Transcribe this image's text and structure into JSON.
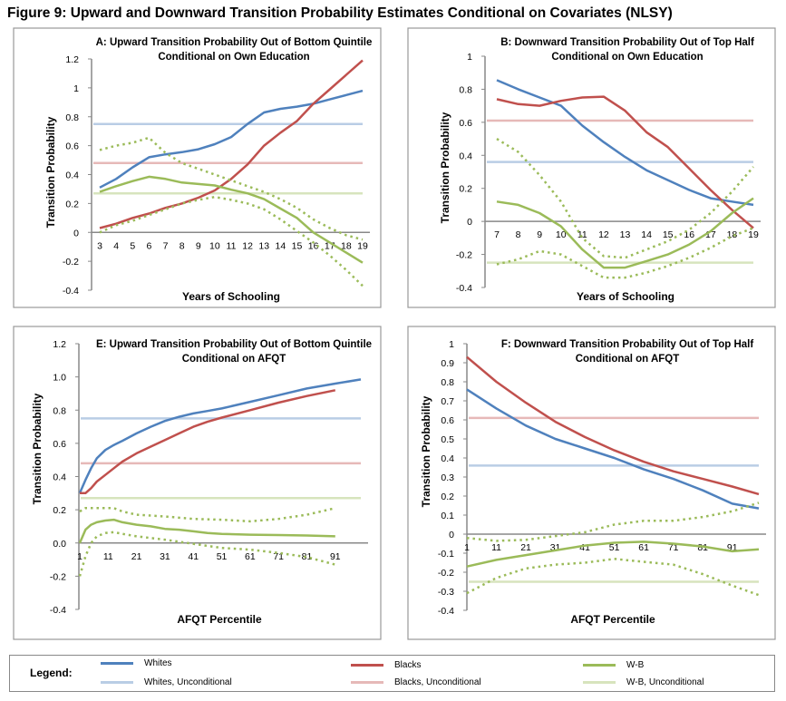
{
  "figure_title": "Figure 9: Upward and Downward Transition Probability Estimates Conditional on Covariates (NLSY)",
  "colors": {
    "whites": "#4F81BD",
    "blacks": "#C0504D",
    "wb": "#9BBB59",
    "whites_unc": "#B9CDE5",
    "blacks_unc": "#E6B9B8",
    "wb_unc": "#D7E4BD"
  },
  "legend": {
    "title": "Legend:",
    "items": [
      {
        "label": "Whites",
        "color": "#4F81BD"
      },
      {
        "label": "Blacks",
        "color": "#C0504D"
      },
      {
        "label": "W-B",
        "color": "#9BBB59"
      },
      {
        "label": "Whites, Unconditional",
        "color": "#B9CDE5"
      },
      {
        "label": "Blacks, Unconditional",
        "color": "#E6B9B8"
      },
      {
        "label": "W-B, Unconditional",
        "color": "#D7E4BD"
      }
    ]
  },
  "chart_data": [
    {
      "type": "line",
      "id": "A",
      "title": [
        "A: Upward Transition Probability Out of Bottom Quintile",
        "Conditional on Own Education"
      ],
      "xlabel": "Years of Schooling",
      "ylabel": "Transition Probability",
      "xlim": [
        3,
        19
      ],
      "ylim": [
        -0.4,
        1.2
      ],
      "yticks": [
        1.2,
        1,
        0.8,
        0.6,
        0.4,
        0.2,
        0,
        -0.2,
        -0.4
      ],
      "ytick_labels": [
        "1.2",
        "1",
        "0.8",
        "0.6",
        "0.4",
        "0.2",
        "0",
        "-0.2",
        "-0.4"
      ],
      "xticks": [
        3,
        4,
        5,
        6,
        7,
        8,
        9,
        10,
        11,
        12,
        13,
        14,
        15,
        16,
        17,
        18,
        19
      ],
      "xtick_labels": [
        "3",
        "4",
        "5",
        "6",
        "7",
        "8",
        "9",
        "10",
        "11",
        "12",
        "13",
        "14",
        "15",
        "16",
        "17",
        "18",
        "19"
      ],
      "x": [
        3,
        4,
        5,
        6,
        7,
        8,
        9,
        10,
        11,
        12,
        13,
        14,
        15,
        16,
        17,
        18,
        19
      ],
      "series": [
        {
          "name": "Whites",
          "values": [
            0.31,
            0.37,
            0.45,
            0.52,
            0.54,
            0.555,
            0.575,
            0.61,
            0.66,
            0.75,
            0.83,
            0.855,
            0.87,
            0.89,
            0.92,
            0.95,
            0.98
          ]
        },
        {
          "name": "Blacks",
          "values": [
            0.03,
            0.06,
            0.1,
            0.13,
            0.17,
            0.2,
            0.24,
            0.29,
            0.37,
            0.47,
            0.6,
            0.69,
            0.77,
            0.89,
            0.99,
            1.09,
            1.19
          ]
        },
        {
          "name": "W-B",
          "values": [
            0.28,
            0.32,
            0.355,
            0.385,
            0.37,
            0.345,
            0.335,
            0.325,
            0.295,
            0.27,
            0.23,
            0.165,
            0.1,
            0.0,
            -0.07,
            -0.14,
            -0.21
          ]
        },
        {
          "name": "W-B upper CI",
          "values": [
            0.57,
            0.6,
            0.62,
            0.655,
            0.55,
            0.48,
            0.44,
            0.4,
            0.36,
            0.32,
            0.28,
            0.23,
            0.17,
            0.09,
            0.03,
            -0.02,
            -0.05
          ]
        },
        {
          "name": "W-B lower CI",
          "values": [
            0.0,
            0.05,
            0.08,
            0.12,
            0.16,
            0.2,
            0.225,
            0.245,
            0.225,
            0.2,
            0.16,
            0.09,
            0.01,
            -0.07,
            -0.16,
            -0.26,
            -0.37
          ]
        }
      ],
      "unconditional": {
        "Whites": 0.75,
        "Blacks": 0.48,
        "W-B": 0.27
      }
    },
    {
      "type": "line",
      "id": "B",
      "title": [
        "B: Downward Transition Probability Out of Top Half",
        "Conditional on Own Education"
      ],
      "xlabel": "Years of Schooling",
      "ylabel": "Transition Probability",
      "xlim": [
        7,
        19
      ],
      "ylim": [
        -0.4,
        1
      ],
      "yticks": [
        1,
        0.8,
        0.6,
        0.4,
        0.2,
        0,
        -0.2,
        -0.4
      ],
      "ytick_labels": [
        "1",
        "0.8",
        "0.6",
        "0.4",
        "0.2",
        "0",
        "-0.2",
        "-0.4"
      ],
      "xticks": [
        7,
        8,
        9,
        10,
        11,
        12,
        13,
        14,
        15,
        16,
        17,
        18,
        19
      ],
      "xtick_labels": [
        "7",
        "8",
        "9",
        "10",
        "11",
        "12",
        "13",
        "14",
        "15",
        "16",
        "17",
        "18",
        "19"
      ],
      "x": [
        7,
        8,
        9,
        10,
        11,
        12,
        13,
        14,
        15,
        16,
        17,
        18,
        19
      ],
      "series": [
        {
          "name": "Whites",
          "values": [
            0.855,
            0.8,
            0.75,
            0.7,
            0.58,
            0.48,
            0.39,
            0.31,
            0.25,
            0.19,
            0.14,
            0.12,
            0.1
          ]
        },
        {
          "name": "Blacks",
          "values": [
            0.74,
            0.71,
            0.7,
            0.73,
            0.75,
            0.755,
            0.67,
            0.54,
            0.45,
            0.32,
            0.19,
            0.07,
            -0.04
          ]
        },
        {
          "name": "W-B",
          "values": [
            0.12,
            0.1,
            0.05,
            -0.03,
            -0.17,
            -0.28,
            -0.28,
            -0.24,
            -0.2,
            -0.14,
            -0.06,
            0.05,
            0.14
          ]
        },
        {
          "name": "W-B upper CI",
          "values": [
            0.5,
            0.42,
            0.28,
            0.12,
            -0.1,
            -0.21,
            -0.22,
            -0.17,
            -0.12,
            -0.05,
            0.05,
            0.18,
            0.33
          ]
        },
        {
          "name": "W-B lower CI",
          "values": [
            -0.26,
            -0.23,
            -0.18,
            -0.2,
            -0.27,
            -0.34,
            -0.34,
            -0.31,
            -0.27,
            -0.22,
            -0.16,
            -0.09,
            -0.04
          ]
        }
      ],
      "unconditional": {
        "Whites": 0.36,
        "Blacks": 0.61,
        "W-B": -0.25
      }
    },
    {
      "type": "line",
      "id": "E",
      "title": [
        "E: Upward Transition Probability Out of Bottom Quintile",
        "Conditional on AFQT"
      ],
      "xlabel": "AFQT Percentile",
      "ylabel": "Transition Probability",
      "xlim": [
        1,
        100
      ],
      "ylim": [
        -0.4,
        1.2
      ],
      "yticks": [
        1.2,
        1.0,
        0.8,
        0.6,
        0.4,
        0.2,
        0,
        -0.2,
        -0.4
      ],
      "ytick_labels": [
        "1.2",
        "1.0",
        "0.8",
        "0.6",
        "0.4",
        "0.2",
        "0.0",
        "-0.2",
        "-0.4"
      ],
      "xticks": [
        1,
        11,
        21,
        31,
        41,
        51,
        61,
        71,
        81,
        91
      ],
      "xtick_labels": [
        "1",
        "11",
        "21",
        "31",
        "41",
        "51",
        "61",
        "71",
        "81",
        "91"
      ],
      "series": [
        {
          "name": "Whites",
          "x": [
            1,
            3,
            5,
            7,
            10,
            13,
            16,
            21,
            26,
            31,
            36,
            41,
            46,
            51,
            61,
            71,
            81,
            91,
            100
          ],
          "values": [
            0.3,
            0.38,
            0.45,
            0.51,
            0.56,
            0.59,
            0.615,
            0.66,
            0.7,
            0.735,
            0.76,
            0.78,
            0.795,
            0.81,
            0.85,
            0.89,
            0.93,
            0.96,
            0.985
          ]
        },
        {
          "name": "Blacks",
          "x": [
            1,
            3,
            5,
            7,
            10,
            13,
            16,
            21,
            26,
            31,
            36,
            41,
            46,
            51,
            61,
            71,
            81,
            91
          ],
          "values": [
            0.3,
            0.3,
            0.33,
            0.37,
            0.41,
            0.45,
            0.49,
            0.54,
            0.58,
            0.62,
            0.66,
            0.7,
            0.73,
            0.755,
            0.8,
            0.845,
            0.885,
            0.92
          ]
        },
        {
          "name": "W-B",
          "x": [
            1,
            3,
            5,
            7,
            10,
            13,
            16,
            21,
            26,
            31,
            36,
            41,
            46,
            51,
            61,
            71,
            81,
            91
          ],
          "values": [
            0.0,
            0.08,
            0.11,
            0.125,
            0.135,
            0.14,
            0.125,
            0.11,
            0.1,
            0.085,
            0.08,
            0.07,
            0.06,
            0.055,
            0.05,
            0.048,
            0.045,
            0.04
          ]
        },
        {
          "name": "W-B upper CI",
          "x": [
            1,
            3,
            7,
            13,
            16,
            21,
            31,
            41,
            51,
            61,
            71,
            81,
            91
          ],
          "values": [
            0.19,
            0.21,
            0.21,
            0.21,
            0.19,
            0.17,
            0.16,
            0.145,
            0.14,
            0.13,
            0.145,
            0.17,
            0.21
          ]
        },
        {
          "name": "W-B lower CI",
          "x": [
            1,
            3,
            5,
            7,
            10,
            13,
            16,
            21,
            31,
            41,
            51,
            61,
            71,
            81,
            91
          ],
          "values": [
            -0.2,
            -0.08,
            0.0,
            0.04,
            0.06,
            0.065,
            0.055,
            0.04,
            0.02,
            -0.005,
            -0.03,
            -0.04,
            -0.06,
            -0.085,
            -0.13
          ]
        }
      ],
      "unconditional": {
        "Whites": 0.75,
        "Blacks": 0.48,
        "W-B": 0.27
      }
    },
    {
      "type": "line",
      "id": "F",
      "title": [
        "F: Downward Transition Probability Out of Top Half",
        "Conditional on AFQT"
      ],
      "xlabel": "AFQT Percentile",
      "ylabel": "Transition Probability",
      "xlim": [
        1,
        100
      ],
      "ylim": [
        -0.4,
        1
      ],
      "yticks": [
        1,
        0.9,
        0.8,
        0.7,
        0.6,
        0.5,
        0.4,
        0.3,
        0.2,
        0.1,
        0,
        -0.1,
        -0.2,
        -0.3,
        -0.4
      ],
      "ytick_labels": [
        "1",
        "0.9",
        "0.8",
        "0.7",
        "0.6",
        "0.5",
        "0.4",
        "0.3",
        "0.2",
        "0.1",
        "0",
        "-0.1",
        "-0.2",
        "-0.3",
        "-0.4"
      ],
      "xticks": [
        1,
        11,
        21,
        31,
        41,
        51,
        61,
        71,
        81,
        91
      ],
      "xtick_labels": [
        "1",
        "11",
        "21",
        "31",
        "41",
        "51",
        "61",
        "71",
        "81",
        "91"
      ],
      "x": [
        1,
        11,
        21,
        31,
        41,
        51,
        61,
        71,
        81,
        91,
        100
      ],
      "series": [
        {
          "name": "Whites",
          "values": [
            0.76,
            0.66,
            0.57,
            0.5,
            0.45,
            0.4,
            0.34,
            0.29,
            0.23,
            0.16,
            0.135
          ]
        },
        {
          "name": "Blacks",
          "values": [
            0.93,
            0.8,
            0.69,
            0.59,
            0.51,
            0.44,
            0.38,
            0.33,
            0.29,
            0.25,
            0.21
          ]
        },
        {
          "name": "W-B",
          "values": [
            -0.17,
            -0.135,
            -0.11,
            -0.085,
            -0.06,
            -0.045,
            -0.04,
            -0.05,
            -0.065,
            -0.09,
            -0.08
          ]
        },
        {
          "name": "W-B upper CI",
          "values": [
            -0.02,
            -0.035,
            -0.03,
            -0.01,
            0.01,
            0.05,
            0.07,
            0.07,
            0.09,
            0.12,
            0.165
          ]
        },
        {
          "name": "W-B lower CI",
          "values": [
            -0.31,
            -0.23,
            -0.18,
            -0.16,
            -0.15,
            -0.13,
            -0.145,
            -0.16,
            -0.21,
            -0.27,
            -0.32
          ]
        }
      ],
      "unconditional": {
        "Whites": 0.36,
        "Blacks": 0.61,
        "W-B": -0.25
      }
    }
  ]
}
